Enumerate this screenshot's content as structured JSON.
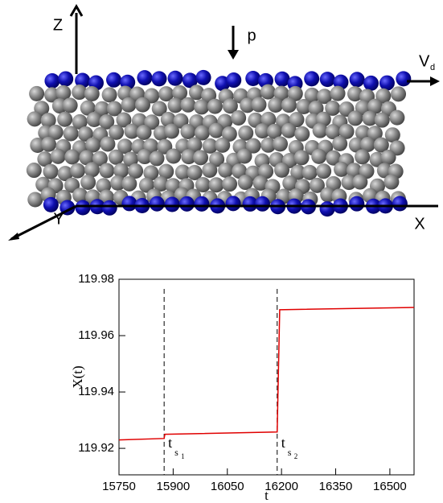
{
  "diagram": {
    "z_label": "Z",
    "pressure_label": "p",
    "velocity_label": {
      "text": "V",
      "sub": "d"
    },
    "x_label": "X",
    "y_label": "Y"
  },
  "chart_data": {
    "type": "line",
    "x_label": "t",
    "y_label": "X(t)",
    "x": [
      15750,
      15875,
      15877,
      16188,
      16195,
      16567
    ],
    "series": [
      {
        "color": "#e00000",
        "values": [
          119.923,
          119.9235,
          119.925,
          119.9258,
          119.9692,
          119.97
        ]
      }
    ],
    "xlim": [
      15750,
      16567
    ],
    "xticks": [
      15750,
      15900,
      16050,
      16200,
      16350,
      16500
    ],
    "ylim": [
      119.9106,
      119.98
    ],
    "yticks": [
      119.92,
      119.94,
      119.96,
      119.98
    ],
    "markers": [
      {
        "x": 15875,
        "label": {
          "text": "t",
          "sub": "s",
          "subsub": "1"
        }
      },
      {
        "x": 16188,
        "label": {
          "text": "t",
          "sub": "s",
          "subsub": "2"
        }
      }
    ]
  }
}
